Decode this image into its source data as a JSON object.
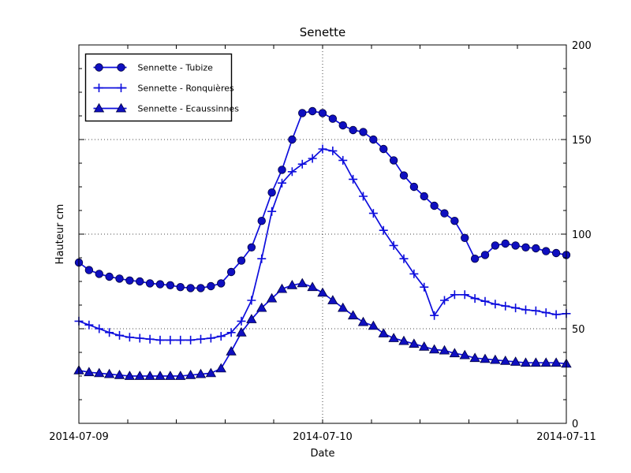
{
  "chart_data": {
    "type": "line",
    "title": "Senette",
    "xlabel": "Date",
    "ylabel": "Hauteur cm",
    "ylim": [
      0,
      200
    ],
    "y_major_ticks": [
      0,
      50,
      100,
      150,
      200
    ],
    "y_minor_step": 12.5,
    "x_tick_labels": [
      "2014-07-09",
      "2014-07-10",
      "2014-07-11"
    ],
    "x_minor_intervals_per_day": 5,
    "x_range_hours": 48,
    "grid": {
      "horizontal_at": [
        50,
        100,
        150
      ],
      "vertical_at_hour": 24,
      "style": "dotted"
    },
    "legend_position": "upper left",
    "series": [
      {
        "name": "Sennette - Tubize",
        "marker": "circle",
        "values": [
          85,
          81,
          79,
          77.5,
          76.5,
          75.5,
          75,
          74,
          73.5,
          73,
          72,
          71.5,
          71.5,
          72.5,
          74,
          80,
          86,
          93,
          107,
          122,
          134,
          150,
          164,
          165,
          164,
          161,
          157.5,
          155,
          154,
          150,
          145,
          139,
          131,
          125,
          120,
          115,
          111,
          107,
          98,
          87,
          89,
          94,
          95,
          94,
          93,
          92.5,
          91,
          90,
          89
        ]
      },
      {
        "name": "Sennette - Ronquières",
        "marker": "plus",
        "values": [
          54,
          52,
          50,
          48,
          46.5,
          45.5,
          45,
          44.5,
          44,
          44,
          44,
          44,
          44.5,
          45,
          46,
          48,
          54,
          65,
          87,
          112,
          127,
          133,
          137,
          140,
          145,
          144,
          139,
          129,
          120,
          111,
          102,
          94,
          87,
          79,
          72,
          57,
          65,
          68,
          68,
          66,
          64.5,
          63,
          62,
          61,
          60,
          59.5,
          58.5,
          57.5,
          58
        ]
      },
      {
        "name": "Sennette - Ecaussinnes",
        "marker": "triangle",
        "values": [
          28,
          27,
          26.5,
          26,
          25.5,
          25,
          25,
          25,
          25,
          25,
          25,
          25.5,
          26,
          26.5,
          29,
          38,
          48,
          55,
          61,
          66,
          71,
          73,
          74,
          72,
          69,
          65,
          61,
          57,
          53.5,
          51.5,
          47.5,
          45,
          43.5,
          42,
          40.5,
          39,
          38.5,
          37,
          36,
          34.5,
          34,
          33.5,
          33,
          32.5,
          32,
          32,
          32,
          32,
          31.5
        ]
      }
    ],
    "colors": {
      "line": "#0d0ddd",
      "marker_fill": "#0f0fc0",
      "marker_edge": "#000040",
      "grid": "#333333",
      "axis": "#000000",
      "background": "#ffffff"
    }
  }
}
